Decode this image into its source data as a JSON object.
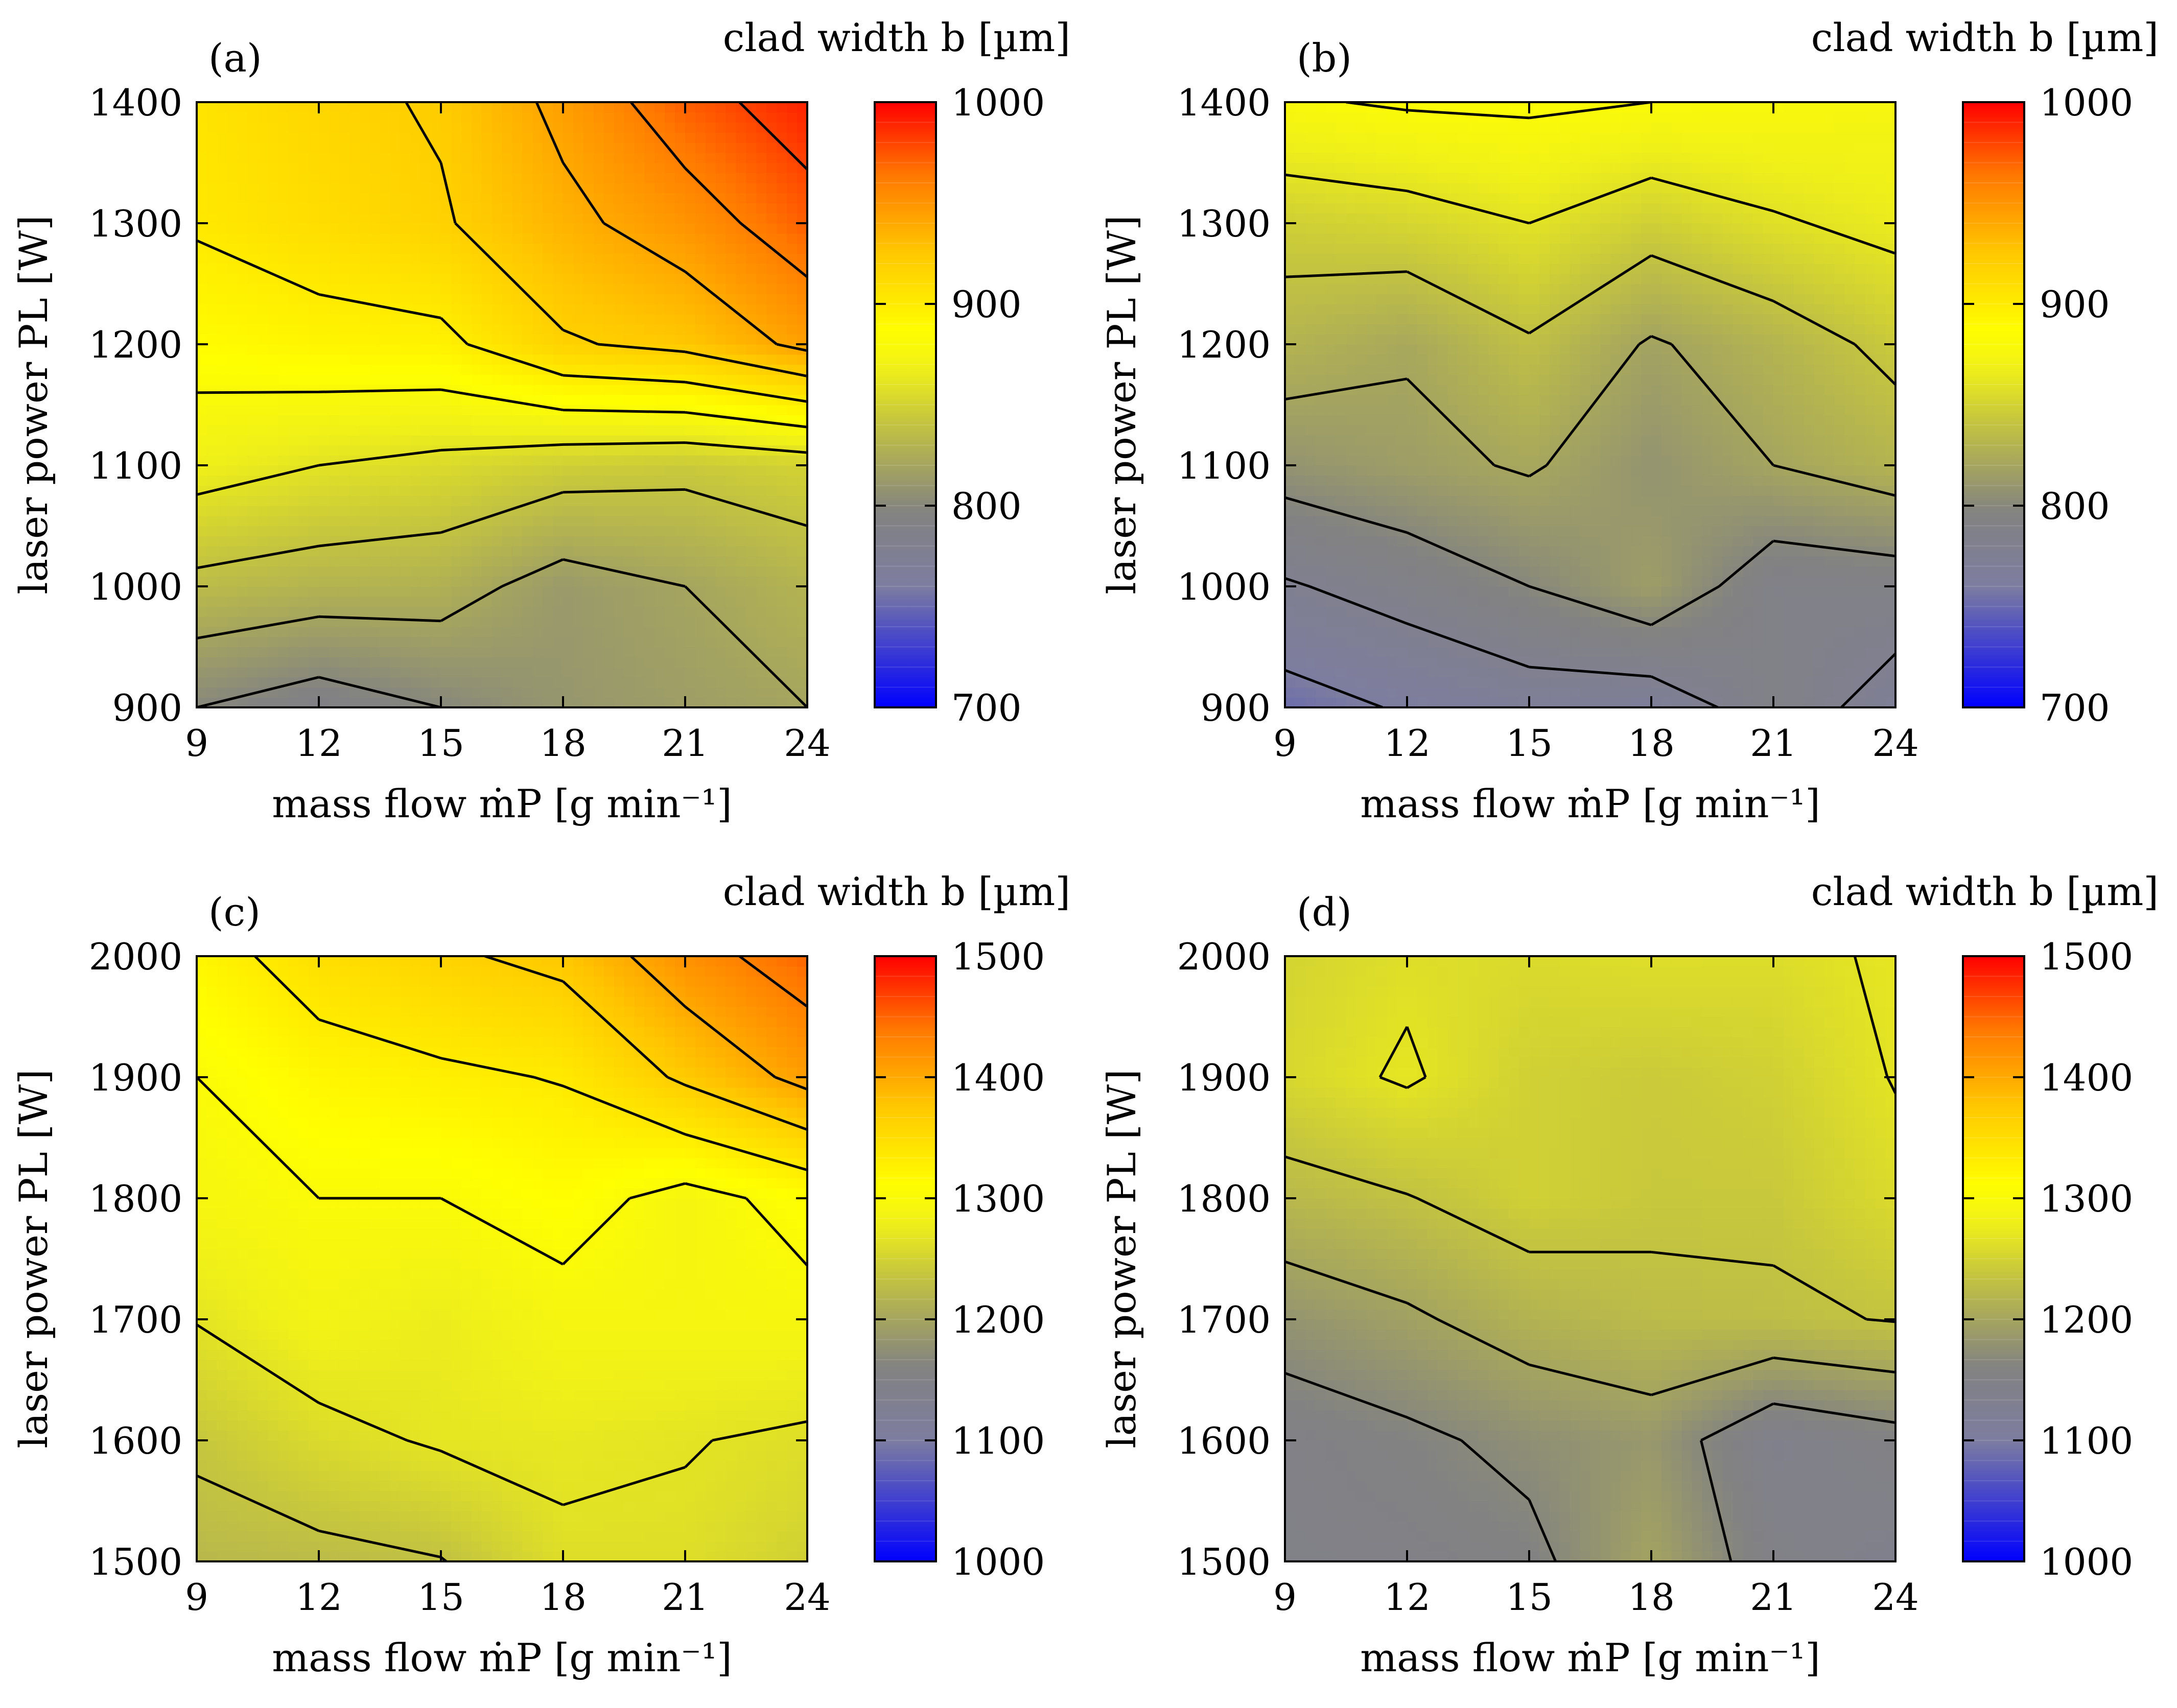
{
  "chart_data": [
    {
      "type": "heatmap",
      "panel_label": "(a)",
      "colorbar_title": "clad width b [µm]",
      "xlabel": "mass flow ṁP [g min⁻¹]",
      "ylabel": "laser power PL [W]",
      "x": [
        9,
        12,
        15,
        18,
        21,
        24
      ],
      "y": [
        900,
        1000,
        1100,
        1200,
        1300,
        1400
      ],
      "x_ticks": [
        "9",
        "12",
        "15",
        "18",
        "21",
        "24"
      ],
      "y_ticks": [
        "900",
        "1000",
        "1100",
        "1200",
        "1300",
        "1400"
      ],
      "clim": [
        700,
        1000
      ],
      "colorbar_ticks": [
        "700",
        "800",
        "900",
        "1000"
      ],
      "z": [
        [
          800,
          790,
          800,
          810,
          815,
          820
        ],
        [
          835,
          830,
          828,
          812,
          820,
          830
        ],
        [
          868,
          860,
          855,
          848,
          845,
          850
        ],
        [
          888,
          893,
          895,
          918,
          925,
          945
        ],
        [
          902,
          910,
          918,
          935,
          950,
          972
        ],
        [
          905,
          915,
          922,
          945,
          972,
          990
        ]
      ]
    },
    {
      "type": "heatmap",
      "panel_label": "(b)",
      "colorbar_title": "clad width b [µm]",
      "xlabel": "mass flow ṁP [g min⁻¹]",
      "ylabel": "laser power PL [W]",
      "x": [
        9,
        12,
        15,
        18,
        21,
        24
      ],
      "y": [
        900,
        1000,
        1100,
        1200,
        1300,
        1400
      ],
      "x_ticks": [
        "9",
        "12",
        "15",
        "18",
        "21",
        "24"
      ],
      "y_ticks": [
        "900",
        "1000",
        "1100",
        "1200",
        "1300",
        "1400"
      ],
      "clim": [
        700,
        1000
      ],
      "colorbar_ticks": [
        "700",
        "800",
        "900",
        "1000"
      ],
      "z": [
        [
          752,
          762,
          770,
          768,
          790,
          772
        ],
        [
          778,
          788,
          800,
          815,
          788,
          790
        ],
        [
          808,
          815,
          822,
          808,
          820,
          830
        ],
        [
          830,
          822,
          838,
          818,
          830,
          845
        ],
        [
          848,
          852,
          860,
          848,
          858,
          865
        ],
        [
          878,
          882,
          883,
          880,
          878,
          875
        ]
      ]
    },
    {
      "type": "heatmap",
      "panel_label": "(c)",
      "colorbar_title": "clad width b [µm]",
      "xlabel": "mass flow ṁP [g min⁻¹]",
      "ylabel": "laser power PL [W]",
      "x": [
        9,
        12,
        15,
        18,
        21,
        24
      ],
      "y": [
        1500,
        1600,
        1700,
        1800,
        1900,
        2000
      ],
      "x_ticks": [
        "9",
        "12",
        "15",
        "18",
        "21",
        "24"
      ],
      "y_ticks": [
        "1500",
        "1600",
        "1700",
        "1800",
        "1900",
        "2000"
      ],
      "clim": [
        1000,
        1500
      ],
      "colorbar_ticks": [
        "1000",
        "1100",
        "1200",
        "1300",
        "1400",
        "1500"
      ],
      "z": [
        [
          1222,
          1225,
          1232,
          1262,
          1262,
          1248
        ],
        [
          1238,
          1258,
          1270,
          1272,
          1268,
          1262
        ],
        [
          1268,
          1286,
          1276,
          1290,
          1290,
          1292
        ],
        [
          1292,
          1300,
          1300,
          1312,
          1290,
          1310
        ],
        [
          1300,
          1320,
          1328,
          1335,
          1372,
          1410
        ],
        [
          1320,
          1348,
          1362,
          1375,
          1420,
          1450
        ]
      ]
    },
    {
      "type": "heatmap",
      "panel_label": "(d)",
      "colorbar_title": "clad width b [µm]",
      "xlabel": "mass flow ṁP [g min⁻¹]",
      "ylabel": "laser power PL [W]",
      "x": [
        9,
        12,
        15,
        18,
        21,
        24
      ],
      "y": [
        1500,
        1600,
        1700,
        1800,
        1900,
        2000
      ],
      "x_ticks": [
        "9",
        "12",
        "15",
        "18",
        "21",
        "24"
      ],
      "y_ticks": [
        "1500",
        "1600",
        "1700",
        "1800",
        "1900",
        "2000"
      ],
      "clim": [
        1000,
        1500
      ],
      "colorbar_ticks": [
        "1000",
        "1100",
        "1200",
        "1300",
        "1400",
        "1500"
      ],
      "z": [
        [
          1148,
          1150,
          1158,
          1198,
          1150,
          1138
        ],
        [
          1150,
          1160,
          1175,
          1185,
          1140,
          1155
        ],
        [
          1180,
          1195,
          1215,
          1225,
          1228,
          1235
        ],
        [
          1222,
          1232,
          1248,
          1240,
          1240,
          1258
        ],
        [
          1255,
          1270,
          1248,
          1242,
          1248,
          1268
        ],
        [
          1252,
          1262,
          1258,
          1262,
          1260,
          1270
        ]
      ]
    }
  ]
}
